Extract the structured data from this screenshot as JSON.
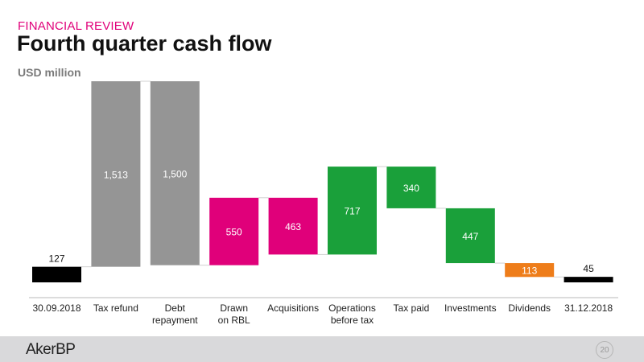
{
  "header": {
    "section": "FINANCIAL REVIEW",
    "title": "Fourth quarter cash flow",
    "unit": "USD million"
  },
  "footer": {
    "logo": "AkerBP",
    "page": "20"
  },
  "colors": {
    "total": "#000000",
    "debt": "#959595",
    "rbl": "#e0007a",
    "operations": "#1aa03a",
    "dividends": "#ee7d1a"
  },
  "chart_data": {
    "type": "bar",
    "subtype": "waterfall",
    "ylabel": "USD million",
    "categories": [
      [
        "30.09.2018"
      ],
      [
        "Tax refund"
      ],
      [
        "Debt",
        "repayment"
      ],
      [
        "Drawn",
        "on RBL"
      ],
      [
        "Acquisitions"
      ],
      [
        "Operations",
        "before tax"
      ],
      [
        "Tax paid"
      ],
      [
        "Investments"
      ],
      [
        "Dividends"
      ],
      [
        "31.12.2018"
      ]
    ],
    "bars": [
      {
        "kind": "total",
        "start": 0,
        "end": 127,
        "label": "127",
        "color": "#000000",
        "label_color": "#111111"
      },
      {
        "kind": "step",
        "start": 127,
        "end": 1640,
        "label": "1,513",
        "color": "#959595",
        "label_color": "#ffffff"
      },
      {
        "kind": "step",
        "start": 1640,
        "end": 140,
        "label": "1,500",
        "color": "#959595",
        "label_color": "#ffffff"
      },
      {
        "kind": "step",
        "start": 140,
        "end": 690,
        "label": "550",
        "color": "#e0007a",
        "label_color": "#ffffff"
      },
      {
        "kind": "step",
        "start": 690,
        "end": 227,
        "label": "463",
        "color": "#e0007a",
        "label_color": "#ffffff"
      },
      {
        "kind": "step",
        "start": 227,
        "end": 944,
        "label": "717",
        "color": "#1aa03a",
        "label_color": "#ffffff"
      },
      {
        "kind": "step",
        "start": 944,
        "end": 604,
        "label": "340",
        "color": "#1aa03a",
        "label_color": "#ffffff"
      },
      {
        "kind": "step",
        "start": 604,
        "end": 157,
        "label": "447",
        "color": "#1aa03a",
        "label_color": "#ffffff"
      },
      {
        "kind": "step",
        "start": 157,
        "end": 44,
        "label": "113",
        "color": "#ee7d1a",
        "label_color": "#ffffff"
      },
      {
        "kind": "total",
        "start": 0,
        "end": 45,
        "label": "45",
        "color": "#000000",
        "label_color": "#111111"
      }
    ],
    "ylim": [
      0,
      1640
    ],
    "grid": false,
    "legend": "none"
  }
}
